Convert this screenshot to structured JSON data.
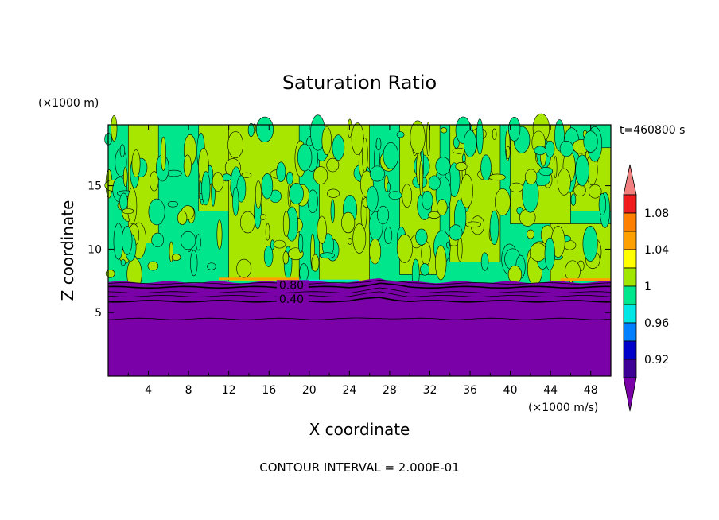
{
  "chart_data": {
    "type": "heatmap",
    "title": "Saturation Ratio",
    "xlabel": "X coordinate",
    "ylabel": "Z coordinate",
    "x_unit": "(×1000 m/s)",
    "y_unit": "(×1000 m)",
    "time_label": "t=460800 s",
    "footer": "CONTOUR INTERVAL = 2.000E-01",
    "xlim": [
      0,
      50
    ],
    "ylim": [
      0,
      19.8
    ],
    "xticks": [
      "4",
      "8",
      "12",
      "16",
      "20",
      "24",
      "28",
      "32",
      "36",
      "40",
      "44",
      "48"
    ],
    "yticks": [
      "5",
      "10",
      "15"
    ],
    "contour_labels": [
      {
        "text": "0.80",
        "x": 17,
        "y": 7.0
      },
      {
        "text": "0.40",
        "x": 17,
        "y": 5.9
      }
    ],
    "regions": {
      "dry_layer_top": 7.4,
      "dry_layer_color": "#7a00a8",
      "upper_background_color": "#00e68c",
      "supersaturated_patch_color": "#a8e600"
    },
    "colorbar": {
      "levels": [
        "1.08",
        "1.04",
        "1",
        "0.96",
        "0.92"
      ],
      "colors": [
        "#f07f7f",
        "#ee1c1c",
        "#ff7f00",
        "#ff9f00",
        "#ffff00",
        "#a0e600",
        "#00e68c",
        "#00e6e6",
        "#0080ff",
        "#0000c8",
        "#3c0096",
        "#7a00a8"
      ]
    }
  }
}
